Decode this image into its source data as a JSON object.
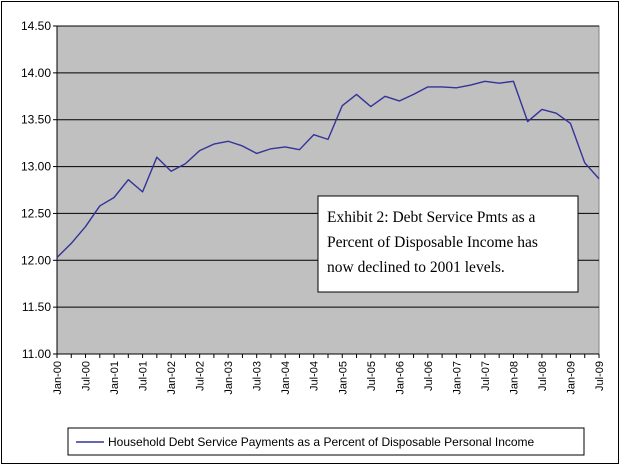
{
  "chart_data": {
    "type": "line",
    "title": "",
    "xlabel": "",
    "ylabel": "",
    "ylim": [
      11.0,
      14.5
    ],
    "yticks": [
      "11.00",
      "11.50",
      "12.00",
      "12.50",
      "13.00",
      "13.50",
      "14.00",
      "14.50"
    ],
    "xticks": [
      "Jan-00",
      "Jul-00",
      "Jan-01",
      "Jul-01",
      "Jan-02",
      "Jul-02",
      "Jan-03",
      "Jul-03",
      "Jan-04",
      "Jul-04",
      "Jan-05",
      "Jul-05",
      "Jan-06",
      "Jul-06",
      "Jan-07",
      "Jul-07",
      "Jan-08",
      "Jul-08",
      "Jan-09",
      "Jul-09"
    ],
    "grid": "horizontal",
    "legend_position": "bottom",
    "plot_background": "#c0c0c0",
    "series": [
      {
        "name": "Household Debt Service Payments as a Percent of Disposable Personal Income",
        "color": "#333399",
        "frequency": "quarterly",
        "x": [
          "Jan-00",
          "Apr-00",
          "Jul-00",
          "Oct-00",
          "Jan-01",
          "Apr-01",
          "Jul-01",
          "Oct-01",
          "Jan-02",
          "Apr-02",
          "Jul-02",
          "Oct-02",
          "Jan-03",
          "Apr-03",
          "Jul-03",
          "Oct-03",
          "Jan-04",
          "Apr-04",
          "Jul-04",
          "Oct-04",
          "Jan-05",
          "Apr-05",
          "Jul-05",
          "Oct-05",
          "Jan-06",
          "Apr-06",
          "Jul-06",
          "Oct-06",
          "Jan-07",
          "Apr-07",
          "Jul-07",
          "Oct-07",
          "Jan-08",
          "Apr-08",
          "Jul-08",
          "Oct-08",
          "Jan-09",
          "Apr-09",
          "Jul-09"
        ],
        "values": [
          12.03,
          12.18,
          12.36,
          12.58,
          12.67,
          12.86,
          12.73,
          13.1,
          12.95,
          13.03,
          13.17,
          13.24,
          13.27,
          13.22,
          13.14,
          13.19,
          13.21,
          13.18,
          13.34,
          13.29,
          13.65,
          13.77,
          13.64,
          13.75,
          13.7,
          13.77,
          13.85,
          13.85,
          13.84,
          13.87,
          13.91,
          13.89,
          13.91,
          13.48,
          13.61,
          13.57,
          13.46,
          13.04,
          12.87
        ]
      }
    ],
    "annotation": {
      "lines": [
        "Exhibit 2: Debt Service Pmts as a",
        "Percent of Disposable Income has",
        "now declined to 2001 levels."
      ],
      "position": "center-right"
    }
  }
}
